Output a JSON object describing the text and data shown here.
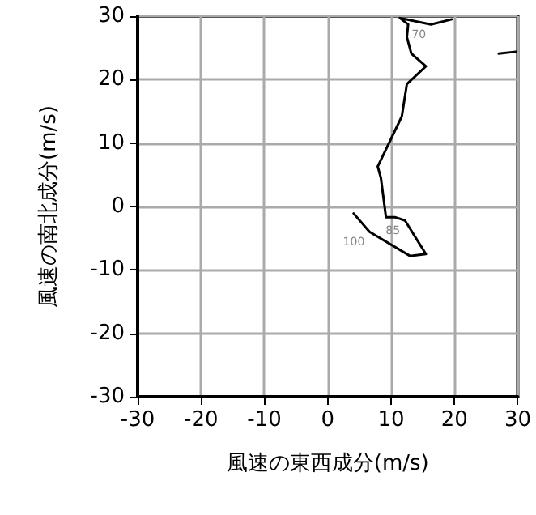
{
  "chart_data": {
    "type": "line",
    "xlabel": "風速の東西成分(m/s)",
    "ylabel": "風速の南北成分(m/s)",
    "x": [
      4.1,
      6.6,
      13.0,
      15.5,
      12.2,
      10.7,
      9.2,
      8.4,
      7.9,
      11.7,
      12.5,
      15.5,
      13.2,
      12.5,
      12.7,
      11.4,
      16.3,
      19.6,
      null,
      27.0,
      29.7
    ],
    "series": [
      {
        "color": "#000000",
        "values": [
          -1.1,
          -4.0,
          -7.8,
          -7.5,
          -2.2,
          -1.7,
          -1.7,
          4.5,
          6.3,
          14.2,
          19.3,
          22.1,
          24.1,
          26.7,
          28.7,
          29.7,
          28.7,
          29.5,
          null,
          24.1,
          24.4
        ]
      }
    ],
    "annotations": [
      {
        "text": "100",
        "x": 6.6,
        "y": -4.0
      },
      {
        "text": "85",
        "x": 12.2,
        "y": -2.2
      },
      {
        "text": "70",
        "x": 16.3,
        "y": 28.7
      }
    ],
    "xlim": [
      -30,
      30
    ],
    "xticks": [
      -30,
      -20,
      -10,
      0,
      10,
      20,
      30
    ],
    "ylim": [
      -30,
      30
    ],
    "yticks": [
      -30,
      -20,
      -10,
      0,
      10,
      20,
      30
    ],
    "grid": true,
    "marker": "none",
    "line_style": "solid"
  }
}
